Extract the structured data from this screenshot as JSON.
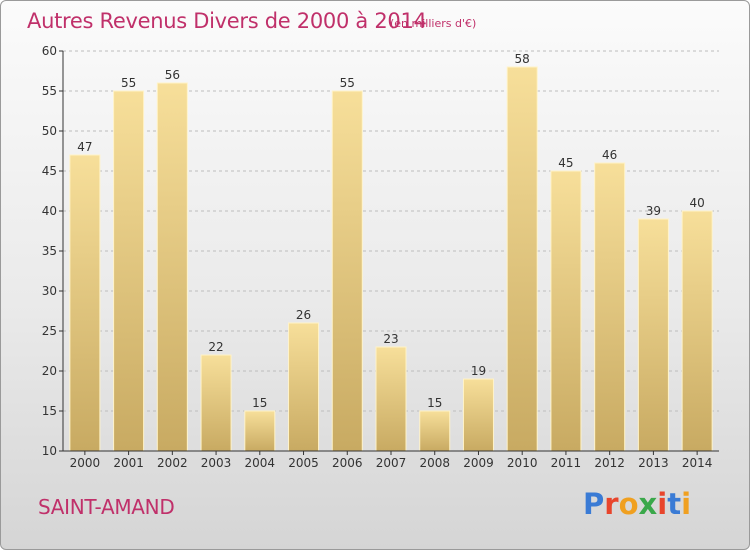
{
  "title": "Autres Revenus Divers de 2000 à 2014",
  "unit": "(en milliers d'€)",
  "commune": "SAINT-AMAND",
  "brand": {
    "text": "Proxiti",
    "letter_colors": [
      "#3a7bd5",
      "#e8452c",
      "#f0a020",
      "#3aa84a",
      "#e8452c",
      "#3a7bd5",
      "#f0a020"
    ]
  },
  "colors": {
    "title": "#c0306a",
    "bar_light": "#f7df9a",
    "bar_dark": "#c8aa62",
    "axis": "#333333"
  },
  "chart_data": {
    "type": "bar",
    "title": "Autres Revenus Divers de 2000 à 2014",
    "xlabel": "",
    "ylabel": "",
    "categories": [
      "2000",
      "2001",
      "2002",
      "2003",
      "2004",
      "2005",
      "2006",
      "2007",
      "2008",
      "2009",
      "2010",
      "2011",
      "2012",
      "2013",
      "2014"
    ],
    "values": [
      47,
      55,
      56,
      22,
      15,
      26,
      55,
      23,
      15,
      19,
      58,
      45,
      46,
      39,
      40
    ],
    "ylim": [
      10,
      60
    ],
    "yticks": [
      10,
      15,
      20,
      25,
      30,
      35,
      40,
      45,
      50,
      55,
      60
    ],
    "grid": "horizontal",
    "data_labels": true
  }
}
